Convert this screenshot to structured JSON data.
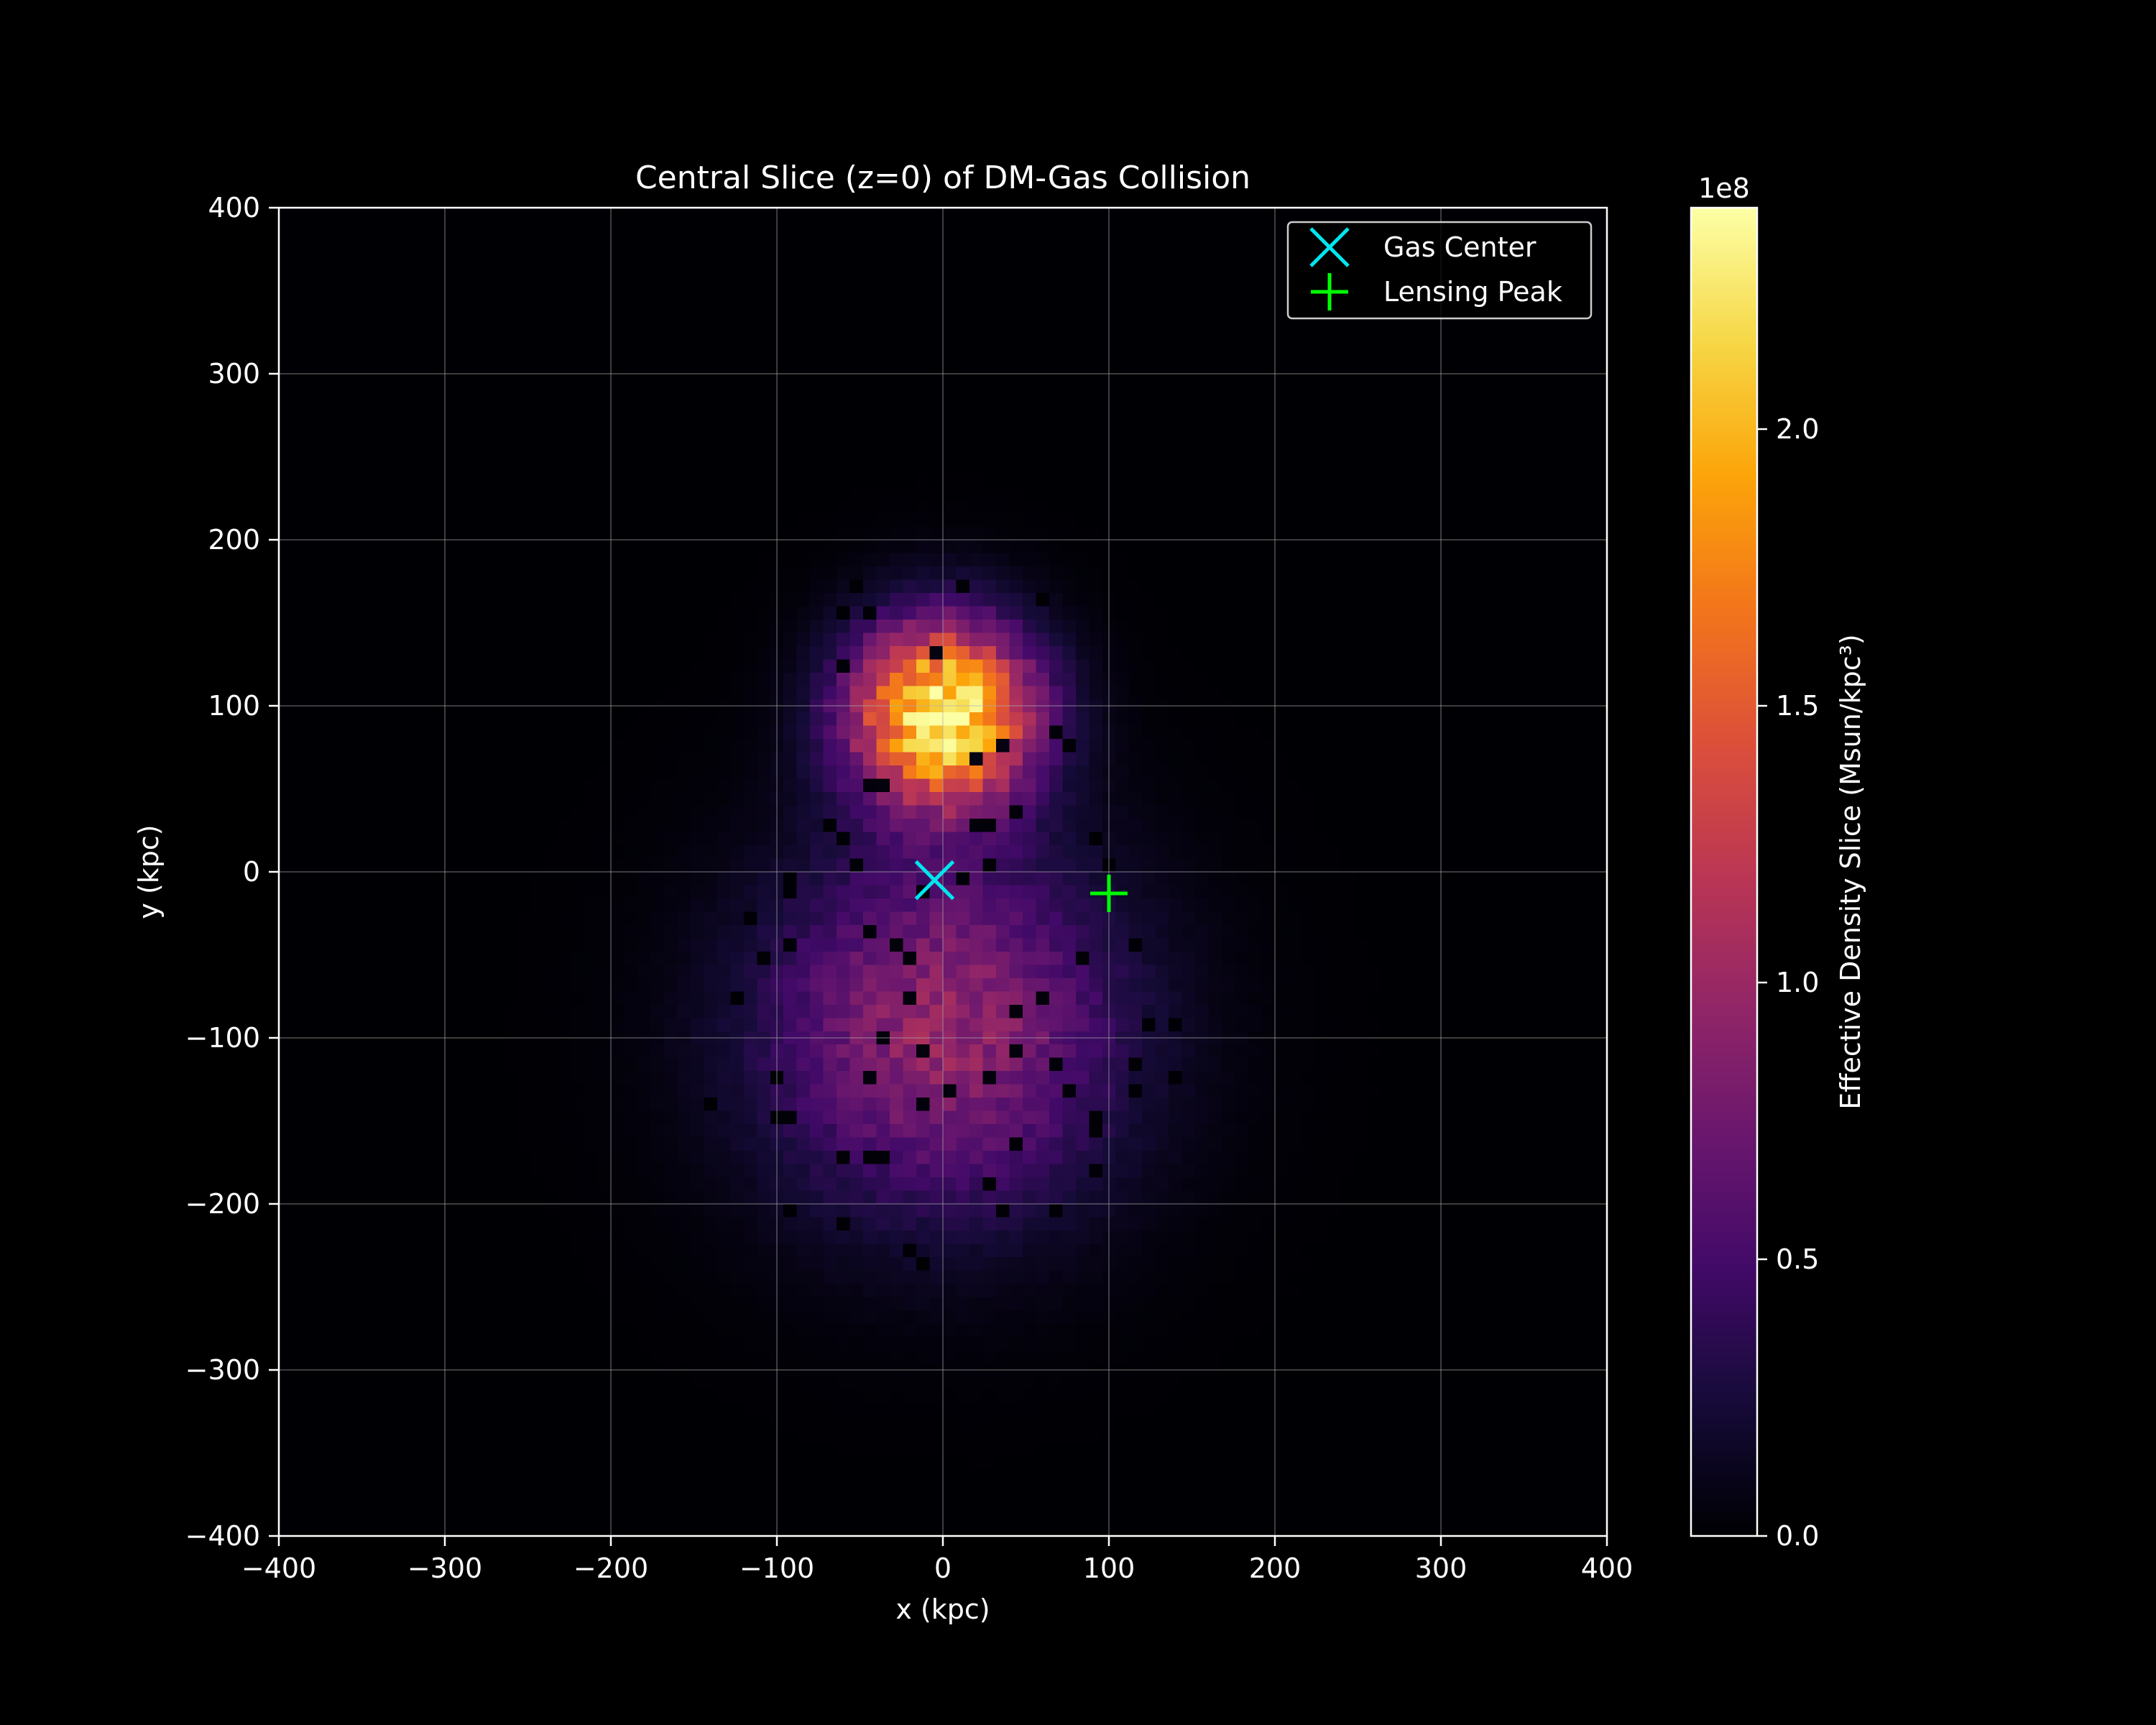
{
  "chart_data": {
    "type": "heatmap",
    "title": "Central Slice (z=0) of DM-Gas Collision",
    "xlabel": "x (kpc)",
    "ylabel": "y (kpc)",
    "xlim": [
      -400,
      400
    ],
    "ylim": [
      -400,
      400
    ],
    "x_ticks": [
      -400,
      -300,
      -200,
      -100,
      0,
      100,
      200,
      300,
      400
    ],
    "y_ticks": [
      -400,
      -300,
      -200,
      -100,
      0,
      100,
      200,
      300,
      400
    ],
    "x_tick_labels": [
      "−400",
      "−300",
      "−200",
      "−100",
      "0",
      "100",
      "200",
      "300",
      "400"
    ],
    "y_tick_labels": [
      "−400",
      "−300",
      "−200",
      "−100",
      "0",
      "100",
      "200",
      "300",
      "400"
    ],
    "grid": true,
    "colormap": "inferno",
    "grid_resolution": 100,
    "components": [
      {
        "center": [
          0,
          95
        ],
        "peak": 240000000.0,
        "sigma": 38
      },
      {
        "center": [
          0,
          -95
        ],
        "peak": 95000000.0,
        "sigma": 75
      }
    ],
    "colorbar": {
      "label": "Effective Density Slice (Msun/kpc³)",
      "multiplier": "1e8",
      "range": [
        0,
        2.4
      ],
      "ticks": [
        0.0,
        0.5,
        1.0,
        1.5,
        2.0
      ],
      "tick_labels": [
        "0.0",
        "0.5",
        "1.0",
        "1.5",
        "2.0"
      ]
    },
    "markers": [
      {
        "name": "Gas Center",
        "x": -5,
        "y": -5,
        "marker": "x",
        "color": "#00e5ee"
      },
      {
        "name": "Lensing Peak",
        "x": 100,
        "y": -13,
        "marker": "+",
        "color": "#00ff00"
      }
    ],
    "legend_position": "top-right"
  }
}
